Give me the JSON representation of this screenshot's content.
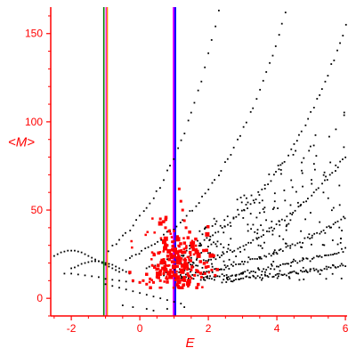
{
  "chart_data": {
    "type": "scatter",
    "title": "",
    "xlabel": "E",
    "ylabel": "<M>",
    "xlim": [
      -2.6,
      6.05
    ],
    "ylim": [
      -10,
      165
    ],
    "x_ticks": [
      -2,
      0,
      2,
      4,
      6
    ],
    "y_ticks": [
      0,
      50,
      100,
      150
    ],
    "tick_color": "#ff0000",
    "axis_color": "#ff0000",
    "grid": false,
    "vertical_lines": [
      {
        "x": -1.05,
        "color": "#008000"
      },
      {
        "x": -0.98,
        "color": "#ff00ff"
      },
      {
        "x": -0.95,
        "color": "#ff8c00"
      },
      {
        "x": 0.98,
        "color": "#ff00ff"
      },
      {
        "x": 1.01,
        "color": "#8000ff"
      },
      {
        "x": 1.04,
        "color": "#0000ff"
      }
    ],
    "series": [
      {
        "color": "#000000",
        "marker": "small-dot",
        "bands": [
          {
            "x0": -0.9,
            "x1": 6.0,
            "a": 28,
            "b": 0.55,
            "m": 31
          },
          {
            "x0": -0.4,
            "x1": 6.0,
            "a": 22,
            "b": 0.43,
            "m": 28
          },
          {
            "x0": 0.2,
            "x1": 6.0,
            "a": 17,
            "b": 0.38,
            "m": 24
          },
          {
            "x0": 0.7,
            "x1": 6.0,
            "a": 14,
            "b": 0.33,
            "m": 20
          },
          {
            "x0": 1.2,
            "x1": 6.0,
            "a": 12,
            "b": 0.28,
            "m": 16
          },
          {
            "x0": 1.8,
            "x1": 6.0,
            "a": 11,
            "b": 0.22,
            "m": 12
          },
          {
            "x0": 2.4,
            "x1": 6.0,
            "a": 10,
            "b": 0.18,
            "m": 8
          }
        ],
        "points": [
          [
            -2.5,
            24
          ],
          [
            -2.4,
            25
          ],
          [
            -2.3,
            26
          ],
          [
            -2.2,
            26.5
          ],
          [
            -2.1,
            27
          ],
          [
            -2.0,
            27
          ],
          [
            -1.9,
            27
          ],
          [
            -1.8,
            26.5
          ],
          [
            -1.7,
            26
          ],
          [
            -1.6,
            25
          ],
          [
            -1.5,
            24
          ],
          [
            -1.4,
            23
          ],
          [
            -1.3,
            22
          ],
          [
            -1.2,
            21
          ],
          [
            -1.1,
            20
          ],
          [
            -1.0,
            19
          ],
          [
            -0.9,
            18
          ],
          [
            -0.8,
            17
          ],
          [
            -0.7,
            16
          ],
          [
            -0.6,
            15
          ],
          [
            -2.0,
            17
          ],
          [
            -1.9,
            17.5
          ],
          [
            -1.8,
            18.5
          ],
          [
            -1.7,
            19.5
          ],
          [
            -1.6,
            20
          ],
          [
            -1.5,
            20.5
          ],
          [
            -1.4,
            21
          ],
          [
            -1.3,
            21
          ],
          [
            -1.2,
            21
          ],
          [
            -1.1,
            20.5
          ],
          [
            -1.0,
            20
          ],
          [
            -0.9,
            19.5
          ],
          [
            -0.8,
            19
          ],
          [
            -0.7,
            18
          ],
          [
            -0.6,
            17
          ],
          [
            -0.5,
            16
          ],
          [
            -0.4,
            15
          ],
          [
            -0.3,
            14
          ],
          [
            -2.2,
            14
          ],
          [
            -2.0,
            14
          ],
          [
            -1.8,
            13.5
          ],
          [
            -1.6,
            13
          ],
          [
            -1.4,
            12.5
          ],
          [
            -1.2,
            12
          ],
          [
            -1.0,
            11
          ],
          [
            -0.8,
            10.5
          ],
          [
            -0.6,
            10
          ],
          [
            -0.4,
            9.5
          ],
          [
            -0.2,
            9.5
          ],
          [
            0.0,
            9
          ],
          [
            -1.0,
            8
          ],
          [
            -0.8,
            7
          ],
          [
            -0.6,
            6
          ],
          [
            -0.4,
            5
          ],
          [
            -0.2,
            4
          ],
          [
            0.0,
            3
          ],
          [
            0.2,
            2
          ],
          [
            0.4,
            1
          ],
          [
            0.6,
            0
          ],
          [
            0.8,
            -1
          ],
          [
            1.0,
            -2
          ],
          [
            1.2,
            -3
          ],
          [
            -0.5,
            -4
          ],
          [
            -0.2,
            -5
          ],
          [
            0.2,
            -6
          ],
          [
            0.4,
            -7
          ],
          [
            0.8,
            -6
          ],
          [
            1.3,
            -5
          ]
        ]
      },
      {
        "color": "#ff0000",
        "marker": "square",
        "cloud": {
          "x_center": 1.05,
          "y_center": 20,
          "x_spread": 0.75,
          "y_spread": 12,
          "count": 220
        },
        "points": [
          [
            -0.2,
            10
          ],
          [
            0.0,
            9
          ],
          [
            0.1,
            10
          ],
          [
            0.2,
            8
          ],
          [
            0.3,
            11
          ],
          [
            0.4,
            9
          ],
          [
            0.5,
            12
          ],
          [
            0.6,
            10
          ],
          [
            0.7,
            14
          ],
          [
            0.8,
            11
          ],
          [
            0.9,
            16
          ],
          [
            1.0,
            13
          ],
          [
            1.1,
            18
          ],
          [
            1.2,
            15
          ],
          [
            1.3,
            17
          ],
          [
            1.4,
            14
          ],
          [
            1.5,
            16
          ],
          [
            1.6,
            13
          ],
          [
            1.7,
            15
          ],
          [
            1.8,
            12
          ],
          [
            1.9,
            14
          ],
          [
            2.0,
            18
          ],
          [
            2.1,
            16
          ],
          [
            2.2,
            13
          ],
          [
            0.6,
            45
          ],
          [
            0.75,
            40
          ],
          [
            0.85,
            38
          ],
          [
            1.15,
            62
          ],
          [
            1.2,
            55
          ],
          [
            1.25,
            50
          ],
          [
            1.3,
            44
          ],
          [
            1.35,
            40
          ],
          [
            0.95,
            32
          ],
          [
            1.05,
            28
          ],
          [
            1.1,
            35
          ],
          [
            0.8,
            30
          ],
          [
            0.9,
            25
          ],
          [
            0.7,
            22
          ]
        ]
      }
    ]
  }
}
